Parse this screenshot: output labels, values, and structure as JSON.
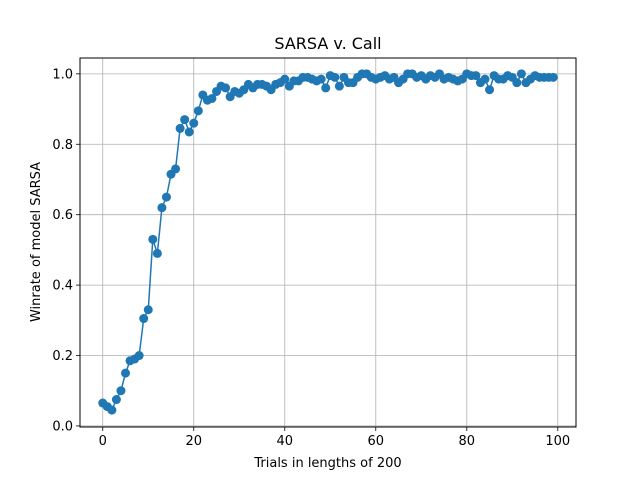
{
  "chart_data": {
    "type": "line",
    "title": "SARSA v. Call",
    "xlabel": "Trials in lengths of 200",
    "ylabel": "Winrate of model SARSA",
    "xlim": [
      -5,
      104
    ],
    "ylim": [
      -0.003,
      1.045
    ],
    "xticks": [
      0,
      20,
      40,
      60,
      80,
      100
    ],
    "yticks": [
      0.0,
      0.2,
      0.4,
      0.6,
      0.8,
      1.0
    ],
    "xtick_labels": [
      "0",
      "20",
      "40",
      "60",
      "80",
      "100"
    ],
    "ytick_labels": [
      "0.0",
      "0.2",
      "0.4",
      "0.6",
      "0.8",
      "1.0"
    ],
    "grid": true,
    "color": "#1f77b4",
    "marker": "circle",
    "series": [
      {
        "x": [
          0,
          1,
          2,
          3,
          4,
          5,
          6,
          7,
          8,
          9,
          10,
          11,
          12,
          13,
          14,
          15,
          16,
          17,
          18,
          19,
          20,
          21,
          22,
          23,
          24,
          25,
          26,
          27,
          28,
          29,
          30,
          31,
          32,
          33,
          34,
          35,
          36,
          37,
          38,
          39,
          40,
          41,
          42,
          43,
          44,
          45,
          46,
          47,
          48,
          49,
          50,
          51,
          52,
          53,
          54,
          55,
          56,
          57,
          58,
          59,
          60,
          61,
          62,
          63,
          64,
          65,
          66,
          67,
          68,
          69,
          70,
          71,
          72,
          73,
          74,
          75,
          76,
          77,
          78,
          79,
          80,
          81,
          82,
          83,
          84,
          85,
          86,
          87,
          88,
          89,
          90,
          91,
          92,
          93,
          94,
          95,
          96,
          97,
          98,
          99
        ],
        "values": [
          0.065,
          0.055,
          0.045,
          0.075,
          0.1,
          0.15,
          0.185,
          0.19,
          0.2,
          0.305,
          0.33,
          0.53,
          0.49,
          0.62,
          0.65,
          0.715,
          0.73,
          0.845,
          0.87,
          0.835,
          0.86,
          0.895,
          0.94,
          0.925,
          0.93,
          0.95,
          0.965,
          0.96,
          0.935,
          0.95,
          0.945,
          0.955,
          0.97,
          0.96,
          0.97,
          0.97,
          0.965,
          0.955,
          0.97,
          0.975,
          0.985,
          0.965,
          0.98,
          0.98,
          0.99,
          0.99,
          0.985,
          0.98,
          0.985,
          0.96,
          0.995,
          0.99,
          0.965,
          0.99,
          0.975,
          0.975,
          0.99,
          1.0,
          1.0,
          0.99,
          0.985,
          0.99,
          0.995,
          0.985,
          0.99,
          0.975,
          0.985,
          1.0,
          1.0,
          0.99,
          0.995,
          0.985,
          0.995,
          0.99,
          1.0,
          0.985,
          0.99,
          0.985,
          0.98,
          0.985,
          1.0,
          0.995,
          0.995,
          0.975,
          0.985,
          0.955,
          0.995,
          0.985,
          0.985,
          0.995,
          0.99,
          0.975,
          1.0,
          0.975,
          0.985,
          0.995,
          0.99,
          0.99,
          0.99,
          0.99
        ]
      }
    ]
  }
}
